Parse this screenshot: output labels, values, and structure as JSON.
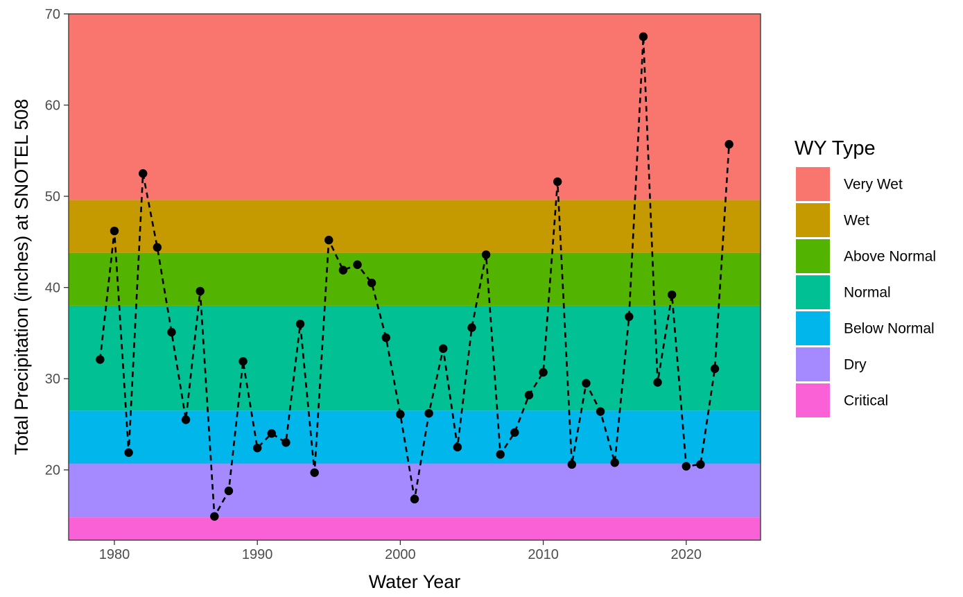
{
  "chart_data": {
    "type": "line",
    "xlabel": "Water Year",
    "ylabel": "Total Precipitation (inches) at SNOTEL 508",
    "xlim": [
      1976.8,
      2025.2
    ],
    "ylim": [
      12.3,
      70
    ],
    "x_ticks": [
      1980,
      1990,
      2000,
      2010,
      2020
    ],
    "y_ticks": [
      20,
      30,
      40,
      50,
      60,
      70
    ],
    "grid": false,
    "legend": {
      "title": "WY Type",
      "placement": "right",
      "entries": [
        "Very Wet",
        "Wet",
        "Above Normal",
        "Normal",
        "Below Normal",
        "Dry",
        "Critical"
      ]
    },
    "bands": [
      {
        "name": "Critical",
        "ymin": 12.3,
        "ymax": 14.8,
        "color": "#FB61D7"
      },
      {
        "name": "Dry",
        "ymin": 14.8,
        "ymax": 20.7,
        "color": "#A58AFF"
      },
      {
        "name": "Below Normal",
        "ymin": 20.7,
        "ymax": 26.5,
        "color": "#00B6EB"
      },
      {
        "name": "Normal",
        "ymin": 26.5,
        "ymax": 38.0,
        "color": "#00C094"
      },
      {
        "name": "Above Normal",
        "ymin": 38.0,
        "ymax": 43.8,
        "color": "#53B400"
      },
      {
        "name": "Wet",
        "ymin": 43.8,
        "ymax": 49.6,
        "color": "#C49A00"
      },
      {
        "name": "Very Wet",
        "ymin": 49.6,
        "ymax": 70,
        "color": "#F8766D"
      }
    ],
    "series": [
      {
        "line_style": "dashed",
        "line_color": "#000000",
        "marker": "circle",
        "x": [
          1979,
          1980,
          1981,
          1982,
          1983,
          1984,
          1985,
          1986,
          1987,
          1988,
          1989,
          1990,
          1991,
          1992,
          1993,
          1994,
          1995,
          1996,
          1997,
          1998,
          1999,
          2000,
          2001,
          2002,
          2003,
          2004,
          2005,
          2006,
          2007,
          2008,
          2009,
          2010,
          2011,
          2012,
          2013,
          2014,
          2015,
          2016,
          2017,
          2018,
          2019,
          2020,
          2021,
          2022,
          2023
        ],
        "values": [
          32.1,
          46.2,
          21.9,
          52.5,
          44.4,
          35.1,
          25.5,
          39.6,
          14.9,
          17.7,
          31.9,
          22.4,
          24.0,
          23.0,
          36.0,
          19.7,
          45.2,
          41.9,
          42.5,
          40.5,
          34.5,
          26.1,
          16.8,
          26.2,
          33.3,
          22.5,
          35.6,
          43.6,
          21.7,
          24.1,
          28.2,
          30.7,
          51.6,
          20.6,
          29.5,
          26.4,
          20.8,
          36.8,
          67.5,
          29.6,
          39.2,
          20.4,
          20.6,
          31.1,
          55.7
        ]
      }
    ]
  }
}
